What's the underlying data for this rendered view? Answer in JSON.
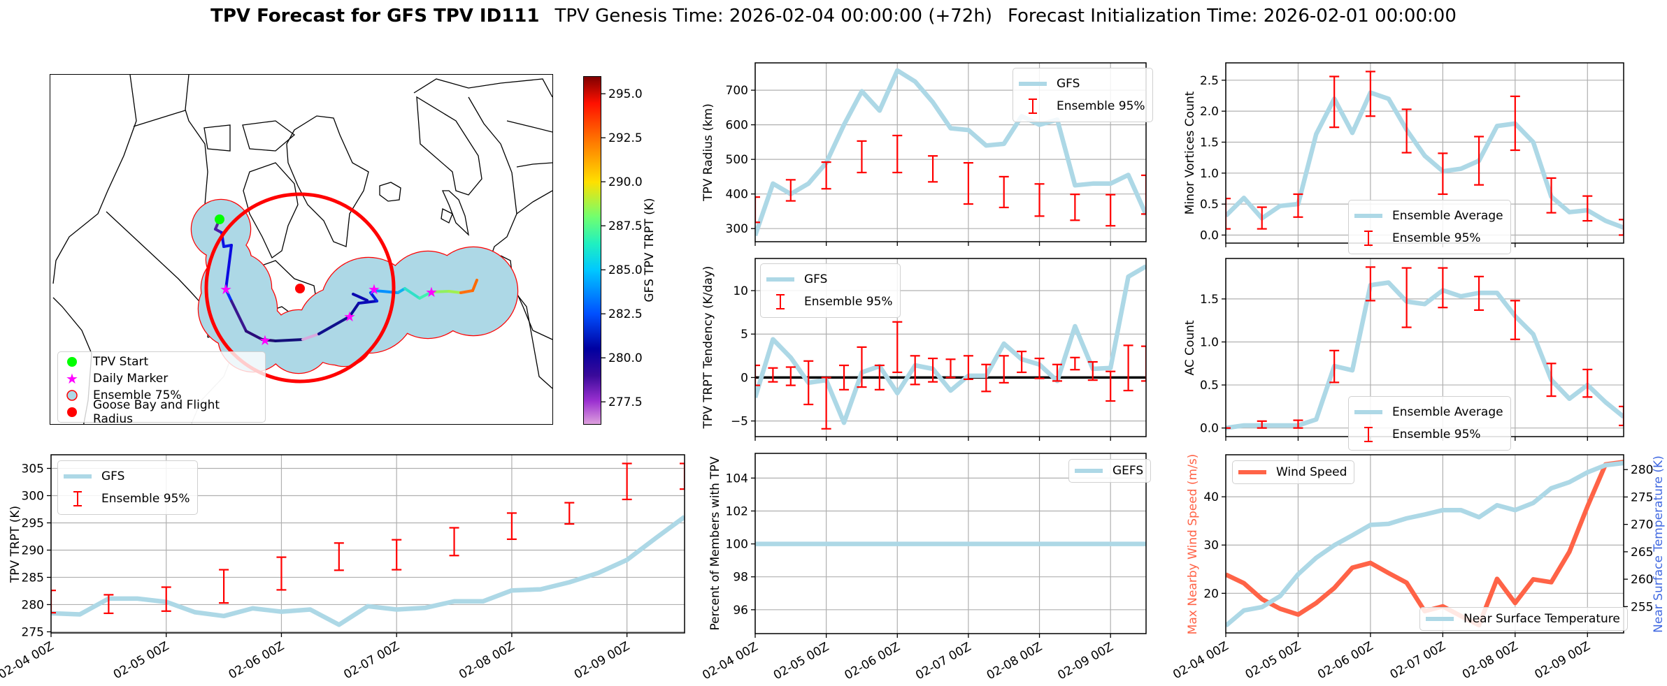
{
  "title": {
    "bold": "TPV Forecast for GFS TPV ID111",
    "genesis": "TPV Genesis Time: 2026-02-04 00:00:00 (+72h)",
    "init": "Forecast Initialization Time: 2026-02-01 00:00:00"
  },
  "map": {
    "legend": [
      "TPV Start",
      "Daily Marker",
      "Ensemble 75%",
      "Goose Bay and Flight Radius"
    ],
    "colorbar": {
      "label": "GFS TPV TRPT (K)",
      "range": [
        276.2,
        296.0
      ],
      "ticks": [
        "277.5",
        "280.0",
        "282.5",
        "285.0",
        "287.5",
        "290.0",
        "292.5",
        "295.0"
      ]
    },
    "colors": {
      "start": "#00ff00",
      "daily_marker": "#ff00ff",
      "ensemble_fill": "#add8e6",
      "ensemble_edge": "#ff0000",
      "goose_bay": "#ff0000"
    }
  },
  "chart_data": [
    {
      "id": "trpt",
      "type": "line",
      "ylabel": "TPV TRPT (K)",
      "xlim": [
        0,
        132
      ],
      "xticks": [
        0,
        24,
        48,
        72,
        96,
        120
      ],
      "xtick_labels": [
        "02-04 00Z",
        "02-05 00Z",
        "02-06 00Z",
        "02-07 00Z",
        "02-08 00Z",
        "02-09 00Z"
      ],
      "ylim": [
        274.8,
        307.5
      ],
      "yticks": [
        "275",
        "280",
        "285",
        "290",
        "295",
        "300",
        "305"
      ],
      "legend_position": "upper-left",
      "series": [
        {
          "name": "GFS",
          "type": "line",
          "color": "#add8e6",
          "x": [
            0,
            6,
            12,
            18,
            24,
            30,
            36,
            42,
            48,
            54,
            60,
            66,
            72,
            78,
            84,
            90,
            96,
            102,
            108,
            114,
            120,
            126,
            132
          ],
          "y": [
            278.4,
            278.2,
            281.1,
            281.1,
            280.5,
            278.6,
            277.9,
            279.3,
            278.7,
            279.1,
            276.3,
            279.7,
            279.1,
            279.4,
            280.6,
            280.6,
            282.6,
            282.8,
            284.1,
            285.8,
            288.2,
            292.2,
            296.1
          ]
        },
        {
          "name": "Ensemble 95%",
          "type": "errorbar",
          "color": "#ff0000",
          "x": [
            0,
            12,
            24,
            36,
            48,
            60,
            72,
            84,
            96,
            108,
            120,
            132
          ],
          "lo": [
            278.5,
            278.4,
            278.8,
            280.3,
            282.7,
            286.3,
            286.4,
            289.0,
            292.0,
            294.8,
            299.3,
            301.2
          ],
          "hi": [
            282.6,
            281.8,
            283.2,
            286.4,
            288.7,
            291.3,
            291.9,
            294.1,
            296.8,
            298.7,
            305.9,
            305.9
          ]
        }
      ]
    },
    {
      "id": "radius",
      "type": "line",
      "ylabel": "TPV Radius (km)",
      "xlim": [
        0,
        132
      ],
      "xticks": [
        0,
        24,
        48,
        72,
        96,
        120
      ],
      "ylim": [
        262,
        779
      ],
      "yticks": [
        "300",
        "400",
        "500",
        "600",
        "700"
      ],
      "legend_position": "upper-right",
      "series": [
        {
          "name": "GFS",
          "type": "line",
          "color": "#add8e6",
          "x": [
            0,
            6,
            12,
            18,
            24,
            30,
            36,
            42,
            48,
            54,
            60,
            66,
            72,
            78,
            84,
            90,
            96,
            102,
            108,
            114,
            120,
            126,
            132
          ],
          "y": [
            280,
            430,
            400,
            430,
            490,
            600,
            697,
            641,
            757,
            725,
            665,
            590,
            585,
            540,
            545,
            625,
            600,
            615,
            425,
            430,
            430,
            455,
            340
          ]
        },
        {
          "name": "Ensemble 95%",
          "type": "errorbar",
          "color": "#ff0000",
          "x": [
            0,
            12,
            24,
            36,
            48,
            60,
            72,
            84,
            96,
            108,
            120,
            132
          ],
          "lo": [
            318,
            380,
            415,
            462,
            462,
            435,
            371,
            361,
            336,
            324,
            308,
            342
          ],
          "hi": [
            391,
            441,
            492,
            553,
            569,
            510,
            490,
            450,
            429,
            399,
            398,
            454
          ]
        }
      ]
    },
    {
      "id": "tendency",
      "type": "line",
      "ylabel": "TPV TRPT Tendency (K/day)",
      "xlim": [
        0,
        132
      ],
      "xticks": [
        0,
        24,
        48,
        72,
        96,
        120
      ],
      "ylim": [
        -6.8,
        13.7
      ],
      "yticks": [
        "−5",
        "0",
        "5",
        "10"
      ],
      "zero_line": true,
      "legend_position": "upper-left",
      "series": [
        {
          "name": "GFS",
          "type": "line",
          "color": "#add8e6",
          "x": [
            0,
            6,
            12,
            18,
            24,
            30,
            36,
            42,
            48,
            54,
            60,
            66,
            72,
            78,
            84,
            90,
            96,
            102,
            108,
            114,
            120,
            126,
            132
          ],
          "y": [
            -2.3,
            4.4,
            2.3,
            -0.6,
            -0.3,
            -5.2,
            0.6,
            1.3,
            -1.8,
            1.4,
            1.0,
            -1.5,
            0.2,
            0.2,
            3.9,
            2.1,
            1.5,
            -0.4,
            5.9,
            1.0,
            1.1,
            11.6,
            12.8
          ]
        },
        {
          "name": "Ensemble 95%",
          "type": "errorbar",
          "color": "#ff0000",
          "x": [
            0,
            6,
            12,
            18,
            24,
            30,
            36,
            42,
            48,
            54,
            60,
            66,
            72,
            78,
            84,
            90,
            96,
            102,
            108,
            114,
            120,
            126,
            132
          ],
          "lo": [
            -0.9,
            -0.5,
            -0.9,
            -3.1,
            -5.9,
            -1.4,
            -1.1,
            -1.4,
            0.6,
            -0.8,
            -0.5,
            0.0,
            -0.2,
            -1.6,
            -0.6,
            0.6,
            -0.1,
            -0.4,
            0.9,
            -0.3,
            -2.7,
            -1.5,
            -0.4
          ],
          "hi": [
            1.4,
            1.1,
            1.2,
            1.9,
            0.0,
            1.4,
            3.5,
            1.4,
            6.4,
            2.5,
            2.2,
            2.1,
            2.5,
            1.5,
            2.5,
            3.0,
            2.2,
            1.5,
            2.3,
            1.8,
            0.7,
            3.7,
            3.6
          ]
        }
      ]
    },
    {
      "id": "percent",
      "type": "line",
      "ylabel": "Percent of Members with TPV",
      "xlim": [
        0,
        132
      ],
      "xticks": [
        0,
        24,
        48,
        72,
        96,
        120
      ],
      "xtick_labels": [
        "02-04 00Z",
        "02-05 00Z",
        "02-06 00Z",
        "02-07 00Z",
        "02-08 00Z",
        "02-09 00Z"
      ],
      "ylim": [
        94.55,
        105.5
      ],
      "yticks": [
        "96",
        "98",
        "100",
        "102",
        "104"
      ],
      "legend_position": "upper-right",
      "series": [
        {
          "name": "GEFS",
          "type": "line",
          "color": "#add8e6",
          "x": [
            0,
            132
          ],
          "y": [
            100,
            100
          ]
        }
      ]
    },
    {
      "id": "minor",
      "type": "line",
      "ylabel": "Minor Vortices Count",
      "xlim": [
        0,
        132
      ],
      "xticks": [
        0,
        24,
        48,
        72,
        96,
        120
      ],
      "ylim": [
        -0.13,
        2.78
      ],
      "yticks": [
        "0.0",
        "0.5",
        "1.0",
        "1.5",
        "2.0",
        "2.5"
      ],
      "legend_position": "lower-center",
      "series": [
        {
          "name": "Ensemble Average",
          "type": "line",
          "color": "#add8e6",
          "x": [
            0,
            6,
            12,
            18,
            24,
            30,
            36,
            42,
            48,
            54,
            60,
            66,
            72,
            78,
            84,
            90,
            96,
            102,
            108,
            114,
            120,
            126,
            132
          ],
          "y": [
            0.31,
            0.6,
            0.27,
            0.47,
            0.5,
            1.63,
            2.2,
            1.65,
            2.3,
            2.2,
            1.7,
            1.28,
            1.03,
            1.07,
            1.2,
            1.76,
            1.8,
            1.5,
            0.62,
            0.37,
            0.4,
            0.23,
            0.12
          ]
        },
        {
          "name": "Ensemble 95%",
          "type": "errorbar",
          "color": "#ff0000",
          "x": [
            0,
            12,
            24,
            36,
            48,
            60,
            72,
            84,
            96,
            108,
            120,
            132
          ],
          "lo": [
            0.1,
            0.1,
            0.29,
            1.74,
            1.92,
            1.33,
            0.66,
            0.81,
            1.37,
            0.36,
            0.23,
            0.0
          ],
          "hi": [
            0.59,
            0.45,
            0.66,
            2.56,
            2.64,
            2.03,
            1.32,
            1.59,
            2.24,
            0.92,
            0.63,
            0.25
          ]
        }
      ]
    },
    {
      "id": "ac",
      "type": "line",
      "ylabel": "AC Count",
      "xlim": [
        0,
        132
      ],
      "xticks": [
        0,
        24,
        48,
        72,
        96,
        120
      ],
      "ylim": [
        -0.1,
        1.97
      ],
      "yticks": [
        "0.0",
        "0.5",
        "1.0",
        "1.5"
      ],
      "legend_position": "lower-center",
      "series": [
        {
          "name": "Ensemble Average",
          "type": "line",
          "color": "#add8e6",
          "x": [
            0,
            6,
            12,
            18,
            24,
            30,
            36,
            42,
            48,
            54,
            60,
            66,
            72,
            78,
            84,
            90,
            96,
            102,
            108,
            114,
            120,
            126,
            132
          ],
          "y": [
            0.0,
            0.03,
            0.03,
            0.03,
            0.03,
            0.1,
            0.72,
            0.67,
            1.66,
            1.69,
            1.47,
            1.44,
            1.6,
            1.53,
            1.57,
            1.57,
            1.3,
            1.09,
            0.56,
            0.34,
            0.5,
            0.3,
            0.13
          ]
        },
        {
          "name": "Ensemble 95%",
          "type": "errorbar",
          "color": "#ff0000",
          "x": [
            0,
            12,
            24,
            36,
            48,
            60,
            72,
            84,
            96,
            108,
            120,
            132
          ],
          "lo": [
            0.0,
            0.0,
            0.0,
            0.53,
            1.48,
            1.17,
            1.4,
            1.37,
            1.03,
            0.37,
            0.36,
            0.03
          ],
          "hi": [
            0.0,
            0.08,
            0.09,
            0.9,
            1.87,
            1.86,
            1.86,
            1.76,
            1.48,
            0.75,
            0.68,
            0.25
          ]
        }
      ]
    },
    {
      "id": "wind",
      "type": "line",
      "ylabel": "Max Nearby Wind Speed (m/s)",
      "y2label": "Near Surface Temperature (K)",
      "xlim": [
        0,
        132
      ],
      "xticks": [
        0,
        24,
        48,
        72,
        96,
        120
      ],
      "xtick_labels": [
        "02-04 00Z",
        "02-05 00Z",
        "02-06 00Z",
        "02-07 00Z",
        "02-08 00Z",
        "02-09 00Z"
      ],
      "ylim": [
        11.8,
        48.7
      ],
      "yticks": [
        "20",
        "30",
        "40"
      ],
      "ycolor": "#ff6347",
      "y2lim": [
        250.2,
        282.7
      ],
      "y2ticks": [
        "255",
        "260",
        "265",
        "270",
        "275",
        "280"
      ],
      "y2color": "#4169e1",
      "legend_position": "upper-left / lower-right",
      "series": [
        {
          "name": "Wind Speed",
          "type": "line",
          "axis": "left",
          "color": "#ff6347",
          "x": [
            0,
            6,
            12,
            18,
            24,
            30,
            36,
            42,
            48,
            54,
            60,
            66,
            72,
            78,
            84,
            90,
            96,
            102,
            108,
            114,
            120,
            126,
            132
          ],
          "y": [
            23.9,
            22.1,
            18.8,
            16.8,
            15.6,
            18.0,
            21.1,
            25.3,
            26.3,
            24.2,
            22.2,
            16.3,
            17.3,
            15.3,
            13.4,
            23.0,
            18.0,
            22.9,
            22.3,
            28.6,
            38.0,
            46.7,
            47.2
          ]
        },
        {
          "name": "Near Surface Temperature",
          "type": "line",
          "axis": "right",
          "color": "#add8e6",
          "x": [
            0,
            6,
            12,
            18,
            24,
            30,
            36,
            42,
            48,
            54,
            60,
            66,
            72,
            78,
            84,
            90,
            96,
            102,
            108,
            114,
            120,
            126,
            132
          ],
          "y": [
            251.5,
            254.3,
            254.9,
            256.9,
            260.9,
            263.9,
            266.2,
            268.0,
            269.9,
            270.1,
            271.1,
            271.8,
            272.6,
            272.6,
            271.3,
            273.5,
            272.6,
            273.9,
            276.6,
            277.7,
            279.5,
            280.8,
            281.2
          ]
        }
      ]
    }
  ]
}
